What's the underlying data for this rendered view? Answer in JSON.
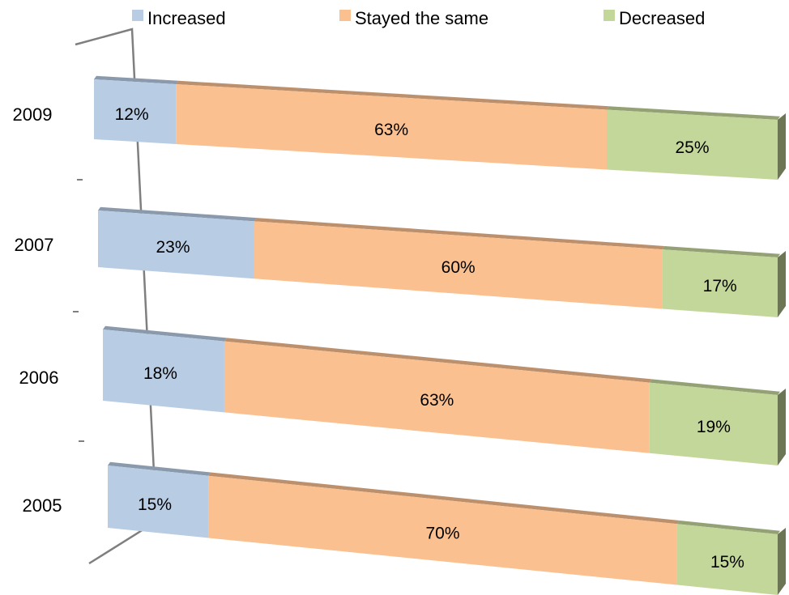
{
  "chart_data": {
    "type": "bar",
    "orientation": "horizontal",
    "stacked": "percent",
    "style": "3d",
    "categories": [
      "2009",
      "2007",
      "2006",
      "2005"
    ],
    "series": [
      {
        "name": "Increased",
        "values": [
          12,
          23,
          18,
          15
        ],
        "labels": [
          "12%",
          "23%",
          "18%",
          "15%"
        ]
      },
      {
        "name": "Stayed the same",
        "values": [
          63,
          60,
          63,
          70
        ],
        "labels": [
          "63%",
          "60%",
          "63%",
          "70%"
        ]
      },
      {
        "name": "Decreased",
        "values": [
          25,
          17,
          19,
          15
        ],
        "labels": [
          "25%",
          "17%",
          "19%",
          "15%"
        ]
      }
    ],
    "xlim": [
      0,
      100
    ],
    "legend": "top",
    "grid": false
  },
  "colors": {
    "Increased": "#b8cce4",
    "Stayed the same": "#fac090",
    "Decreased": "#c4d79b",
    "axis": "#7f7f7f"
  }
}
